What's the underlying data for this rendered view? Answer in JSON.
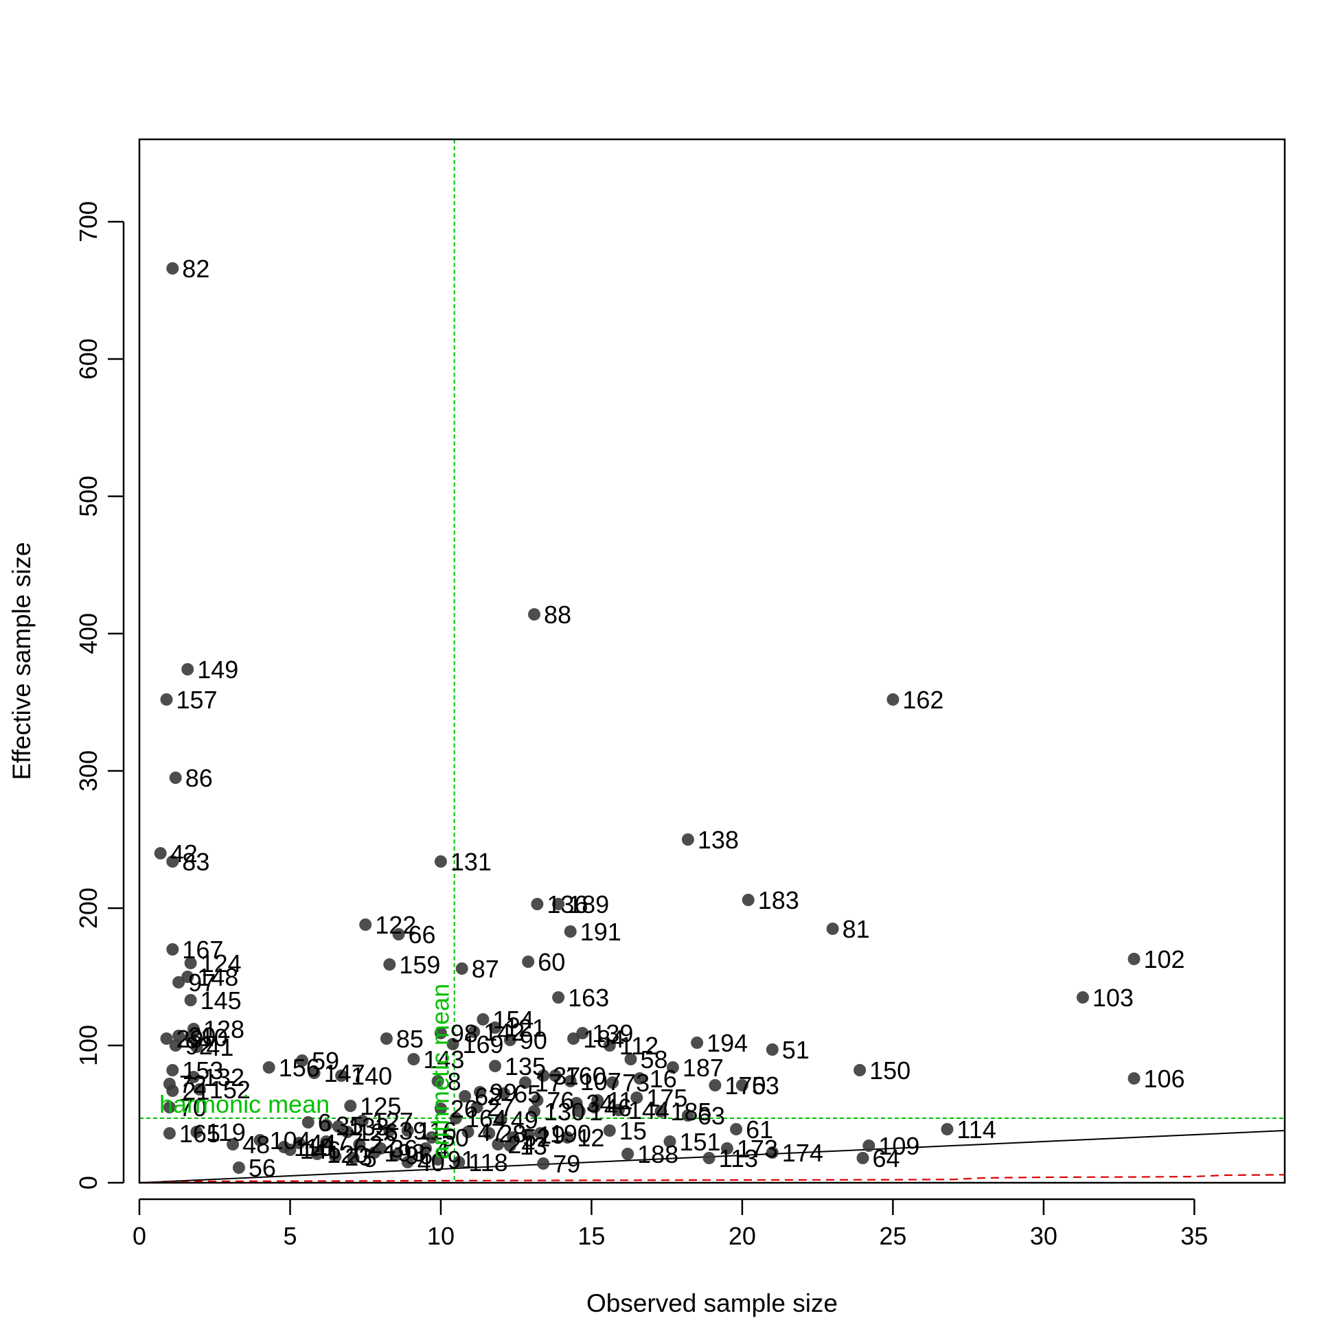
{
  "chart_data": {
    "type": "scatter",
    "title": "",
    "xlabel": "Observed sample size",
    "ylabel": "Effective sample size",
    "xlim": [
      0,
      38
    ],
    "ylim": [
      0,
      760
    ],
    "x_ticks": [
      0,
      5,
      10,
      15,
      20,
      25,
      30,
      35
    ],
    "y_ticks": [
      0,
      100,
      200,
      300,
      400,
      500,
      600,
      700
    ],
    "grid": false,
    "colors": {
      "points": "#3a3a3a",
      "reference_lines": "#00c000",
      "identity_line": "#000000",
      "lower_curve": "#e00000"
    },
    "points": [
      {
        "id": "82",
        "x": 1.1,
        "y": 666
      },
      {
        "id": "88",
        "x": 13.1,
        "y": 414
      },
      {
        "id": "149",
        "x": 1.6,
        "y": 374
      },
      {
        "id": "157",
        "x": 0.9,
        "y": 352
      },
      {
        "id": "162",
        "x": 25.0,
        "y": 352
      },
      {
        "id": "86",
        "x": 1.2,
        "y": 295
      },
      {
        "id": "138",
        "x": 18.2,
        "y": 250
      },
      {
        "id": "42",
        "x": 0.7,
        "y": 240
      },
      {
        "id": "83",
        "x": 1.1,
        "y": 234
      },
      {
        "id": "131",
        "x": 10.0,
        "y": 234
      },
      {
        "id": "183",
        "x": 20.2,
        "y": 206
      },
      {
        "id": "136",
        "x": 13.2,
        "y": 203
      },
      {
        "id": "189",
        "x": 13.9,
        "y": 203
      },
      {
        "id": "122",
        "x": 7.5,
        "y": 188
      },
      {
        "id": "81",
        "x": 23.0,
        "y": 185
      },
      {
        "id": "66",
        "x": 8.6,
        "y": 181
      },
      {
        "id": "191",
        "x": 14.3,
        "y": 183
      },
      {
        "id": "167",
        "x": 1.1,
        "y": 170
      },
      {
        "id": "102",
        "x": 33.0,
        "y": 163
      },
      {
        "id": "124",
        "x": 1.7,
        "y": 160
      },
      {
        "id": "60",
        "x": 12.9,
        "y": 161
      },
      {
        "id": "159",
        "x": 8.3,
        "y": 159
      },
      {
        "id": "87",
        "x": 10.7,
        "y": 156
      },
      {
        "id": "148",
        "x": 1.6,
        "y": 150
      },
      {
        "id": "97",
        "x": 1.3,
        "y": 146
      },
      {
        "id": "103",
        "x": 31.3,
        "y": 135
      },
      {
        "id": "163",
        "x": 13.9,
        "y": 135
      },
      {
        "id": "145",
        "x": 1.7,
        "y": 133
      },
      {
        "id": "154",
        "x": 11.4,
        "y": 119
      },
      {
        "id": "128",
        "x": 1.8,
        "y": 112
      },
      {
        "id": "121",
        "x": 11.8,
        "y": 113
      },
      {
        "id": "142",
        "x": 11.1,
        "y": 110
      },
      {
        "id": "98",
        "x": 10.0,
        "y": 109
      },
      {
        "id": "139",
        "x": 14.7,
        "y": 109
      },
      {
        "id": "30",
        "x": 1.3,
        "y": 107
      },
      {
        "id": "10",
        "x": 1.7,
        "y": 106
      },
      {
        "id": "85",
        "x": 8.2,
        "y": 105
      },
      {
        "id": "184",
        "x": 14.4,
        "y": 105
      },
      {
        "id": "29",
        "x": 0.9,
        "y": 105
      },
      {
        "id": "90",
        "x": 12.3,
        "y": 104
      },
      {
        "id": "169",
        "x": 10.4,
        "y": 101
      },
      {
        "id": "194",
        "x": 18.5,
        "y": 102
      },
      {
        "id": "112",
        "x": 15.6,
        "y": 100
      },
      {
        "id": "92",
        "x": 1.2,
        "y": 100
      },
      {
        "id": "41",
        "x": 1.9,
        "y": 99
      },
      {
        "id": "51",
        "x": 21.0,
        "y": 97
      },
      {
        "id": "58",
        "x": 16.3,
        "y": 90
      },
      {
        "id": "143",
        "x": 9.1,
        "y": 90
      },
      {
        "id": "59",
        "x": 5.4,
        "y": 89
      },
      {
        "id": "156",
        "x": 4.3,
        "y": 84
      },
      {
        "id": "187",
        "x": 17.7,
        "y": 84
      },
      {
        "id": "135",
        "x": 11.8,
        "y": 85
      },
      {
        "id": "150",
        "x": 23.9,
        "y": 82
      },
      {
        "id": "153",
        "x": 1.1,
        "y": 82
      },
      {
        "id": "160",
        "x": 13.8,
        "y": 78
      },
      {
        "id": "147",
        "x": 5.8,
        "y": 80
      },
      {
        "id": "140",
        "x": 6.7,
        "y": 78
      },
      {
        "id": "132",
        "x": 1.8,
        "y": 77
      },
      {
        "id": "106",
        "x": 33.0,
        "y": 76
      },
      {
        "id": "37",
        "x": 13.4,
        "y": 78
      },
      {
        "id": "16",
        "x": 16.6,
        "y": 76
      },
      {
        "id": "107",
        "x": 14.3,
        "y": 74
      },
      {
        "id": "73",
        "x": 15.7,
        "y": 73
      },
      {
        "id": "17",
        "x": 12.8,
        "y": 73
      },
      {
        "id": "72",
        "x": 1.0,
        "y": 72
      },
      {
        "id": "53",
        "x": 20.0,
        "y": 71
      },
      {
        "id": "170",
        "x": 19.1,
        "y": 71
      },
      {
        "id": "8",
        "x": 9.9,
        "y": 74
      },
      {
        "id": "152",
        "x": 2.0,
        "y": 68
      },
      {
        "id": "21",
        "x": 1.1,
        "y": 67
      },
      {
        "id": "99",
        "x": 11.3,
        "y": 66
      },
      {
        "id": "65",
        "x": 12.1,
        "y": 65
      },
      {
        "id": "175",
        "x": 16.5,
        "y": 62
      },
      {
        "id": "11",
        "x": 15.2,
        "y": 60
      },
      {
        "id": "62",
        "x": 10.8,
        "y": 63
      },
      {
        "id": "76",
        "x": 13.2,
        "y": 60
      },
      {
        "id": "34",
        "x": 14.5,
        "y": 58
      },
      {
        "id": "125",
        "x": 7.0,
        "y": 56
      },
      {
        "id": "70",
        "x": 1.0,
        "y": 55
      },
      {
        "id": "46",
        "x": 15.1,
        "y": 55
      },
      {
        "id": "27",
        "x": 11.2,
        "y": 55
      },
      {
        "id": "26",
        "x": 10.0,
        "y": 54
      },
      {
        "id": "144",
        "x": 15.9,
        "y": 53
      },
      {
        "id": "1",
        "x": 14.6,
        "y": 52
      },
      {
        "id": "185",
        "x": 17.3,
        "y": 52
      },
      {
        "id": "130",
        "x": 13.1,
        "y": 52
      },
      {
        "id": "63",
        "x": 18.2,
        "y": 49
      },
      {
        "id": "164",
        "x": 10.5,
        "y": 47
      },
      {
        "id": "49",
        "x": 12.0,
        "y": 46
      },
      {
        "id": "127",
        "x": 7.4,
        "y": 45
      },
      {
        "id": "6",
        "x": 5.6,
        "y": 44
      },
      {
        "id": "114",
        "x": 26.8,
        "y": 39
      },
      {
        "id": "61",
        "x": 19.8,
        "y": 39
      },
      {
        "id": "35",
        "x": 6.2,
        "y": 42
      },
      {
        "id": "15",
        "x": 15.6,
        "y": 38
      },
      {
        "id": "39",
        "x": 8.3,
        "y": 38
      },
      {
        "id": "133",
        "x": 6.6,
        "y": 41
      },
      {
        "id": "116",
        "x": 8.9,
        "y": 38
      },
      {
        "id": "165",
        "x": 1.0,
        "y": 36
      },
      {
        "id": "119",
        "x": 1.9,
        "y": 37
      },
      {
        "id": "47",
        "x": 10.9,
        "y": 37
      },
      {
        "id": "28",
        "x": 11.6,
        "y": 36
      },
      {
        "id": "190",
        "x": 13.3,
        "y": 36
      },
      {
        "id": "126",
        "x": 6.9,
        "y": 37
      },
      {
        "id": "19",
        "x": 12.9,
        "y": 35
      },
      {
        "id": "50",
        "x": 9.7,
        "y": 33
      },
      {
        "id": "12",
        "x": 14.2,
        "y": 33
      },
      {
        "id": "52",
        "x": 12.4,
        "y": 33
      },
      {
        "id": "104",
        "x": 4.0,
        "y": 31
      },
      {
        "id": "151",
        "x": 17.6,
        "y": 30
      },
      {
        "id": "48",
        "x": 3.1,
        "y": 28
      },
      {
        "id": "77",
        "x": 6.2,
        "y": 30
      },
      {
        "id": "44",
        "x": 5.3,
        "y": 29
      },
      {
        "id": "22",
        "x": 7.3,
        "y": 28
      },
      {
        "id": "13",
        "x": 12.3,
        "y": 27
      },
      {
        "id": "24",
        "x": 11.9,
        "y": 28
      },
      {
        "id": "109",
        "x": 24.2,
        "y": 27
      },
      {
        "id": "110",
        "x": 4.8,
        "y": 26
      },
      {
        "id": "4",
        "x": 9.5,
        "y": 25
      },
      {
        "id": "36",
        "x": 8.0,
        "y": 25
      },
      {
        "id": "173",
        "x": 19.5,
        "y": 25
      },
      {
        "id": "146",
        "x": 5.0,
        "y": 24
      },
      {
        "id": "193",
        "x": 7.8,
        "y": 22
      },
      {
        "id": "174",
        "x": 21.0,
        "y": 22
      },
      {
        "id": "120",
        "x": 5.9,
        "y": 21
      },
      {
        "id": "188",
        "x": 16.2,
        "y": 21
      },
      {
        "id": "96",
        "x": 8.5,
        "y": 20
      },
      {
        "id": "23",
        "x": 6.5,
        "y": 19
      },
      {
        "id": "5",
        "x": 7.1,
        "y": 18
      },
      {
        "id": "113",
        "x": 18.9,
        "y": 18
      },
      {
        "id": "64",
        "x": 24.0,
        "y": 18
      },
      {
        "id": "91",
        "x": 9.9,
        "y": 17
      },
      {
        "id": "118",
        "x": 10.6,
        "y": 15
      },
      {
        "id": "40",
        "x": 8.9,
        "y": 15
      },
      {
        "id": "79",
        "x": 13.4,
        "y": 14
      },
      {
        "id": "56",
        "x": 3.3,
        "y": 11
      }
    ],
    "reference_lines": {
      "arithmetic_mean": {
        "label": "arithmetic mean",
        "x": 10.45
      },
      "harmonic_mean": {
        "label": "harmonic mean",
        "y": 47
      }
    },
    "identity_line": {
      "x": [
        0,
        38
      ],
      "y": [
        0,
        38
      ]
    },
    "lower_curve": {
      "x": [
        0,
        2,
        5,
        10,
        15,
        20,
        25,
        27,
        28,
        30,
        33,
        35,
        36,
        38
      ],
      "y": [
        0,
        1,
        1.2,
        1.5,
        1.8,
        2,
        2.2,
        2.4,
        3.5,
        4,
        4.2,
        4.5,
        5.5,
        5.8
      ]
    }
  }
}
